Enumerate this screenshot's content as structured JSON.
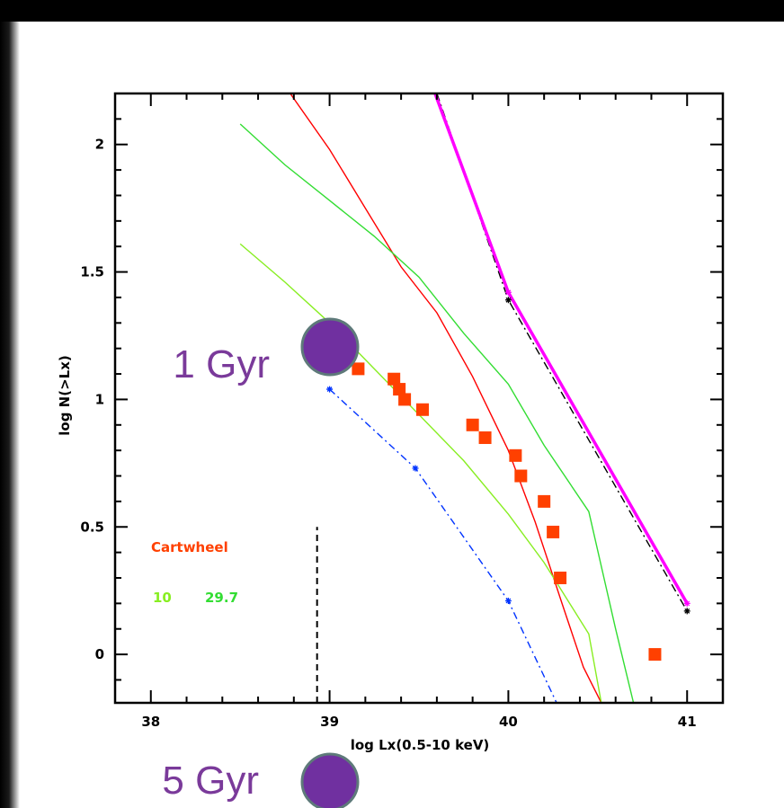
{
  "chart_data": {
    "type": "scatter",
    "xlabel": "log Lx(0.5-10 keV)",
    "ylabel": "log N(>Lx)",
    "xlim": [
      37.8,
      41.2
    ],
    "ylim": [
      -0.19,
      2.2
    ],
    "xticks": [
      {
        "value": 38,
        "label": "38"
      },
      {
        "value": 39,
        "label": "39"
      },
      {
        "value": 40,
        "label": "40"
      },
      {
        "value": 41,
        "label": "41"
      }
    ],
    "yticks": [
      {
        "value": 0,
        "label": "0"
      },
      {
        "value": 0.5,
        "label": "0.5"
      },
      {
        "value": 1,
        "label": "1"
      },
      {
        "value": 1.5,
        "label": "1.5"
      },
      {
        "value": 2,
        "label": "2"
      }
    ],
    "grid": false,
    "series": [
      {
        "name": "Cartwheel",
        "kind": "scatter",
        "color": "#ff4000",
        "marker": "square",
        "points": [
          [
            39.16,
            1.12
          ],
          [
            39.36,
            1.08
          ],
          [
            39.39,
            1.04
          ],
          [
            39.42,
            1.0
          ],
          [
            39.52,
            0.96
          ],
          [
            39.8,
            0.9
          ],
          [
            39.87,
            0.85
          ],
          [
            40.04,
            0.78
          ],
          [
            40.07,
            0.7
          ],
          [
            40.2,
            0.6
          ],
          [
            40.25,
            0.48
          ],
          [
            40.29,
            0.3
          ],
          [
            40.82,
            0.0
          ]
        ]
      },
      {
        "kind": "line",
        "color": "#ff0000",
        "points": [
          [
            38.78,
            2.2
          ],
          [
            39.0,
            1.98
          ],
          [
            39.2,
            1.75
          ],
          [
            39.4,
            1.52
          ],
          [
            39.6,
            1.34
          ],
          [
            39.8,
            1.09
          ],
          [
            40.0,
            0.8
          ],
          [
            40.15,
            0.52
          ],
          [
            40.3,
            0.2
          ],
          [
            40.42,
            -0.05
          ],
          [
            40.52,
            -0.19
          ]
        ]
      },
      {
        "kind": "line",
        "color": "#33dd33",
        "points": [
          [
            38.5,
            2.08
          ],
          [
            38.75,
            1.92
          ],
          [
            39.0,
            1.78
          ],
          [
            39.25,
            1.64
          ],
          [
            39.5,
            1.48
          ],
          [
            39.75,
            1.26
          ],
          [
            40.0,
            1.06
          ],
          [
            40.2,
            0.82
          ],
          [
            40.45,
            0.56
          ],
          [
            40.6,
            0.1
          ],
          [
            40.7,
            -0.19
          ]
        ]
      },
      {
        "kind": "line",
        "color": "#88ee22",
        "points": [
          [
            38.5,
            1.61
          ],
          [
            38.75,
            1.46
          ],
          [
            39.0,
            1.3
          ],
          [
            39.25,
            1.12
          ],
          [
            39.5,
            0.94
          ],
          [
            39.75,
            0.76
          ],
          [
            40.0,
            0.55
          ],
          [
            40.2,
            0.36
          ],
          [
            40.45,
            0.08
          ],
          [
            40.52,
            -0.19
          ]
        ]
      },
      {
        "kind": "line",
        "color": "#0033ff",
        "dash": "8,4,2,4",
        "marker": "star",
        "points": [
          [
            39.0,
            1.04
          ],
          [
            39.48,
            0.73
          ],
          [
            40.0,
            0.21
          ],
          [
            40.27,
            -0.19
          ]
        ]
      },
      {
        "kind": "line",
        "color": "#000000",
        "dash": "9,4,2,4",
        "marker": "star",
        "points": [
          [
            39.6,
            2.2
          ],
          [
            40.0,
            1.39
          ],
          [
            41.0,
            0.17
          ]
        ]
      },
      {
        "kind": "line",
        "color": "#ff00ff",
        "width": 3.5,
        "marker": "star",
        "points": [
          [
            39.59,
            2.2
          ],
          [
            40.0,
            1.42
          ],
          [
            41.0,
            0.2
          ]
        ]
      },
      {
        "kind": "vline",
        "color": "#000000",
        "dash": "7,5",
        "x": 38.93,
        "y_range": [
          -0.19,
          0.5
        ]
      }
    ],
    "annotations": [
      {
        "text": "Cartwheel",
        "color": "#ff4000"
      },
      {
        "text": "10",
        "color": "#88ee22"
      },
      {
        "text": "29.7",
        "color": "#33dd33"
      }
    ]
  },
  "callouts": {
    "gyr1": {
      "label": "1 Gyr",
      "color": "#7030a0"
    },
    "gyr5": {
      "label": "5 Gyr",
      "color": "#7030a0"
    }
  }
}
